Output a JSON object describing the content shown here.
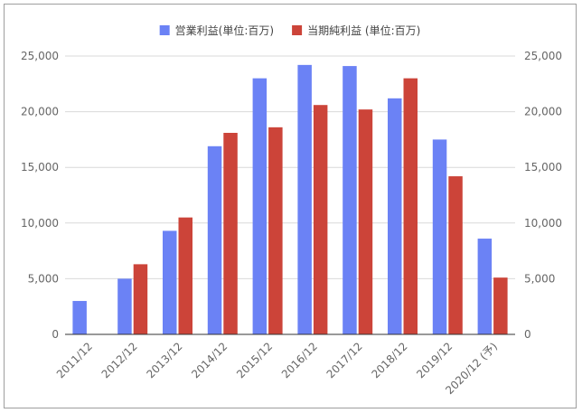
{
  "chart_data": {
    "type": "bar",
    "title": "",
    "xlabel": "",
    "ylabel": "",
    "categories": [
      "2011/12",
      "2012/12",
      "2013/12",
      "2014/12",
      "2015/12",
      "2016/12",
      "2017/12",
      "2018/12",
      "2019/12",
      "2020/12 (予)"
    ],
    "series": [
      {
        "name": "営業利益(単位:百万)",
        "color": "#6b82f5",
        "values": [
          3000,
          5000,
          9300,
          16900,
          23000,
          24200,
          24100,
          21200,
          17500,
          8600
        ]
      },
      {
        "name": "当期純利益 (単位:百万)",
        "color": "#cc4439",
        "values": [
          null,
          6300,
          10500,
          18100,
          18600,
          20600,
          20200,
          23000,
          14200,
          5100
        ]
      }
    ],
    "ylim": [
      0,
      25000
    ],
    "yticks": [
      "0",
      "5,000",
      "10,000",
      "15,000",
      "20,000",
      "25,000"
    ],
    "ytick_values": [
      0,
      5000,
      10000,
      15000,
      20000,
      25000
    ],
    "secondary_axis": "right",
    "grid": true,
    "legend_position": "top"
  }
}
